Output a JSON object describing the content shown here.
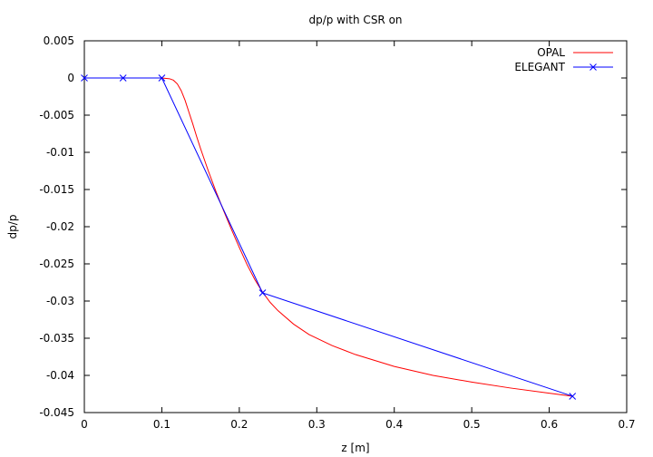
{
  "chart_data": {
    "type": "line",
    "title": "dp/p with CSR on",
    "xlabel": "z [m]",
    "ylabel": "dp/p",
    "xlim": [
      0,
      0.7
    ],
    "ylim": [
      -0.045,
      0.005
    ],
    "x_ticks": [
      0,
      0.1,
      0.2,
      0.3,
      0.4,
      0.5,
      0.6,
      0.7
    ],
    "x_tick_labels": [
      "0",
      "0.1",
      "0.2",
      "0.3",
      "0.4",
      "0.5",
      "0.6",
      "0.7"
    ],
    "y_ticks": [
      0.005,
      0,
      -0.005,
      -0.01,
      -0.015,
      -0.02,
      -0.025,
      -0.03,
      -0.035,
      -0.04,
      -0.045
    ],
    "y_tick_labels": [
      "0.005",
      "0",
      "-0.005",
      "-0.01",
      "-0.015",
      "-0.02",
      "-0.025",
      "-0.03",
      "-0.035",
      "-0.04",
      "-0.045"
    ],
    "grid": false,
    "legend_position": "top-right",
    "series": [
      {
        "name": "OPAL",
        "color": "#ff0000",
        "marker": "none",
        "x": [
          0,
          0.05,
          0.1,
          0.11,
          0.115,
          0.12,
          0.125,
          0.13,
          0.135,
          0.14,
          0.145,
          0.15,
          0.16,
          0.17,
          0.18,
          0.19,
          0.2,
          0.21,
          0.22,
          0.23,
          0.24,
          0.25,
          0.27,
          0.29,
          0.32,
          0.35,
          0.4,
          0.45,
          0.5,
          0.55,
          0.6,
          0.63
        ],
        "y": [
          0,
          0,
          0,
          -0.0001,
          -0.0003,
          -0.0008,
          -0.0017,
          -0.003,
          -0.0046,
          -0.0062,
          -0.0079,
          -0.0095,
          -0.0125,
          -0.0153,
          -0.0179,
          -0.0204,
          -0.0228,
          -0.0251,
          -0.0271,
          -0.0288,
          -0.0302,
          -0.0313,
          -0.0331,
          -0.0345,
          -0.036,
          -0.0372,
          -0.0388,
          -0.04,
          -0.0409,
          -0.0417,
          -0.0424,
          -0.0428
        ]
      },
      {
        "name": "ELEGANT",
        "color": "#0000ff",
        "marker": "x",
        "x": [
          0,
          0.05,
          0.1,
          0.23,
          0.63
        ],
        "y": [
          0,
          0,
          0,
          -0.0289,
          -0.0428
        ]
      }
    ]
  }
}
